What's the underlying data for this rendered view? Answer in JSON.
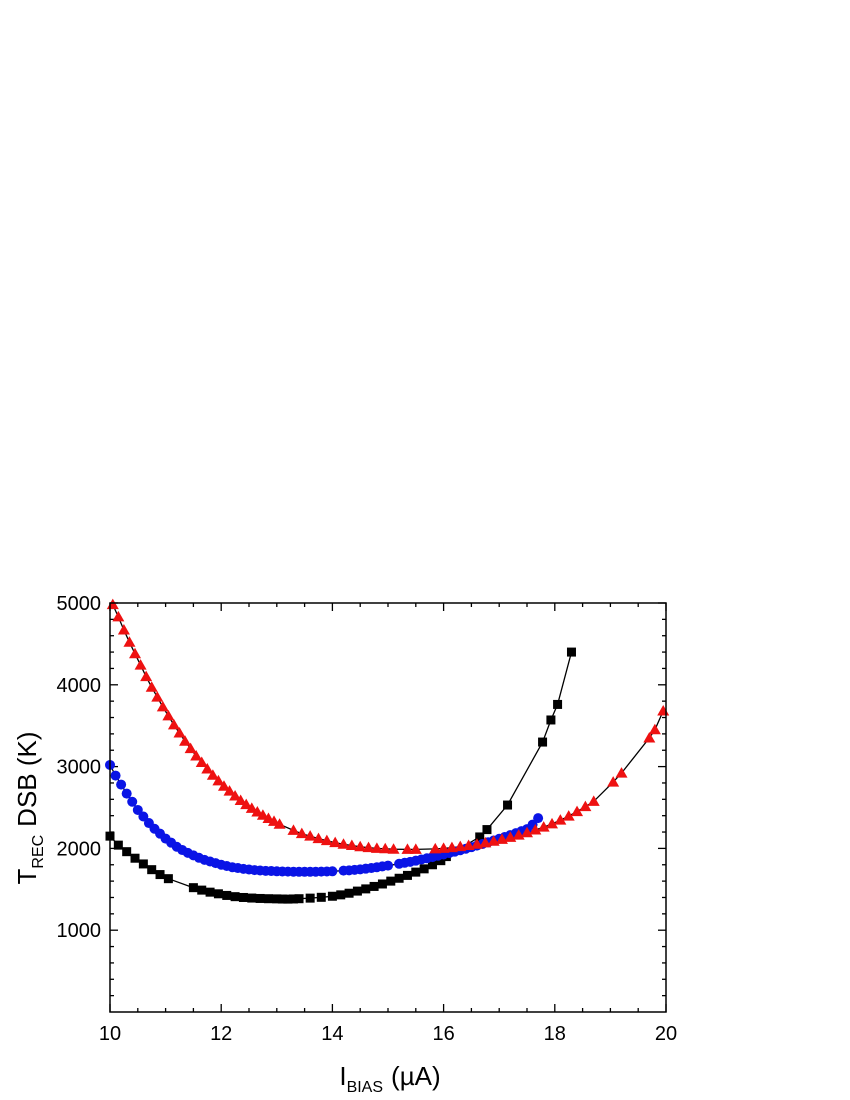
{
  "chart_data": {
    "type": "scatter",
    "title": "",
    "xlabel": {
      "main": "I",
      "sub": "BIAS",
      "unit": "(µA)"
    },
    "ylabel": {
      "main": "T",
      "sub": "REC",
      "rest": "DSB (K)"
    },
    "xlim": [
      10,
      20
    ],
    "ylim": [
      0,
      5000
    ],
    "xticks": [
      "10",
      "12",
      "14",
      "16",
      "18",
      "20"
    ],
    "yticks": [
      "1000",
      "2000",
      "3000",
      "4000",
      "5000"
    ],
    "xtick_values": [
      10,
      12,
      14,
      16,
      18,
      20
    ],
    "ytick_values": [
      1000,
      2000,
      3000,
      4000,
      5000
    ],
    "grid": false,
    "legend": "none",
    "series": [
      {
        "marker": "square",
        "color": "#000000",
        "connect": true,
        "x": [
          10.0,
          10.15,
          10.3,
          10.45,
          10.6,
          10.75,
          10.9,
          11.05,
          11.5,
          11.65,
          11.8,
          11.95,
          12.1,
          12.25,
          12.4,
          12.55,
          12.7,
          12.85,
          13.0,
          13.1,
          13.2,
          13.3,
          13.4,
          13.6,
          13.8,
          14.0,
          14.15,
          14.3,
          14.45,
          14.6,
          14.75,
          14.9,
          15.05,
          15.2,
          15.35,
          15.5,
          15.65,
          15.8,
          15.95,
          16.05,
          16.65,
          16.78,
          17.15,
          17.78,
          17.93,
          18.05,
          18.3
        ],
        "y": [
          2150,
          2040,
          1960,
          1880,
          1810,
          1740,
          1680,
          1630,
          1520,
          1490,
          1465,
          1445,
          1425,
          1410,
          1400,
          1393,
          1388,
          1385,
          1383,
          1381,
          1380,
          1382,
          1385,
          1392,
          1402,
          1415,
          1432,
          1452,
          1478,
          1505,
          1535,
          1565,
          1600,
          1635,
          1670,
          1710,
          1750,
          1800,
          1850,
          1900,
          2140,
          2230,
          2530,
          3300,
          3570,
          3760,
          4400
        ]
      },
      {
        "marker": "circle",
        "color": "#0a14e6",
        "connect": true,
        "x": [
          10.0,
          10.1,
          10.2,
          10.3,
          10.4,
          10.5,
          10.6,
          10.7,
          10.8,
          10.9,
          11.0,
          11.1,
          11.2,
          11.3,
          11.4,
          11.5,
          11.6,
          11.7,
          11.8,
          11.9,
          12.0,
          12.1,
          12.2,
          12.3,
          12.4,
          12.5,
          12.6,
          12.7,
          12.8,
          12.9,
          13.0,
          13.1,
          13.2,
          13.3,
          13.4,
          13.5,
          13.6,
          13.7,
          13.8,
          13.9,
          14.0,
          14.2,
          14.3,
          14.4,
          14.5,
          14.6,
          14.7,
          14.8,
          14.9,
          15.0,
          15.2,
          15.3,
          15.4,
          15.5,
          15.6,
          15.7,
          15.8,
          15.9,
          16.0,
          16.1,
          16.2,
          16.3,
          16.4,
          16.5,
          16.6,
          16.7,
          16.8,
          16.9,
          17.0,
          17.1,
          17.2,
          17.3,
          17.4,
          17.5,
          17.6,
          17.7
        ],
        "y": [
          3020,
          2890,
          2780,
          2670,
          2570,
          2470,
          2390,
          2310,
          2240,
          2180,
          2120,
          2070,
          2020,
          1980,
          1945,
          1915,
          1885,
          1860,
          1840,
          1820,
          1800,
          1785,
          1770,
          1760,
          1750,
          1742,
          1735,
          1730,
          1726,
          1723,
          1720,
          1718,
          1716,
          1715,
          1714,
          1714,
          1714,
          1715,
          1716,
          1718,
          1720,
          1728,
          1732,
          1738,
          1744,
          1752,
          1760,
          1770,
          1780,
          1790,
          1812,
          1824,
          1836,
          1850,
          1864,
          1879,
          1894,
          1910,
          1926,
          1943,
          1960,
          1978,
          1996,
          2015,
          2034,
          2054,
          2075,
          2096,
          2118,
          2140,
          2163,
          2187,
          2211,
          2236,
          2290,
          2370
        ]
      },
      {
        "marker": "triangle",
        "color": "#ee1111",
        "connect": true,
        "x": [
          10.05,
          10.15,
          10.25,
          10.35,
          10.45,
          10.55,
          10.65,
          10.75,
          10.85,
          10.95,
          11.05,
          11.15,
          11.25,
          11.35,
          11.45,
          11.55,
          11.65,
          11.75,
          11.85,
          11.95,
          12.05,
          12.15,
          12.25,
          12.35,
          12.45,
          12.55,
          12.65,
          12.75,
          12.85,
          12.95,
          13.05,
          13.3,
          13.45,
          13.6,
          13.75,
          13.9,
          14.05,
          14.2,
          14.35,
          14.5,
          14.65,
          14.8,
          14.95,
          15.1,
          15.35,
          15.5,
          15.85,
          16.0,
          16.15,
          16.3,
          16.45,
          16.6,
          16.75,
          16.9,
          17.05,
          17.2,
          17.35,
          17.5,
          17.65,
          17.8,
          17.95,
          18.1,
          18.25,
          18.4,
          18.55,
          18.7,
          19.05,
          19.2,
          19.7,
          19.8,
          19.95
        ],
        "y": [
          4980,
          4830,
          4670,
          4520,
          4380,
          4240,
          4100,
          3970,
          3850,
          3730,
          3620,
          3510,
          3410,
          3310,
          3220,
          3130,
          3050,
          2970,
          2895,
          2825,
          2760,
          2700,
          2640,
          2585,
          2535,
          2490,
          2445,
          2405,
          2365,
          2330,
          2295,
          2220,
          2180,
          2150,
          2120,
          2095,
          2070,
          2050,
          2035,
          2020,
          2010,
          2000,
          1995,
          1990,
          1988,
          1988,
          1994,
          2000,
          2010,
          2022,
          2035,
          2050,
          2068,
          2088,
          2110,
          2135,
          2162,
          2192,
          2225,
          2260,
          2300,
          2345,
          2395,
          2450,
          2510,
          2575,
          2810,
          2920,
          3350,
          3450,
          3680
        ]
      }
    ]
  }
}
